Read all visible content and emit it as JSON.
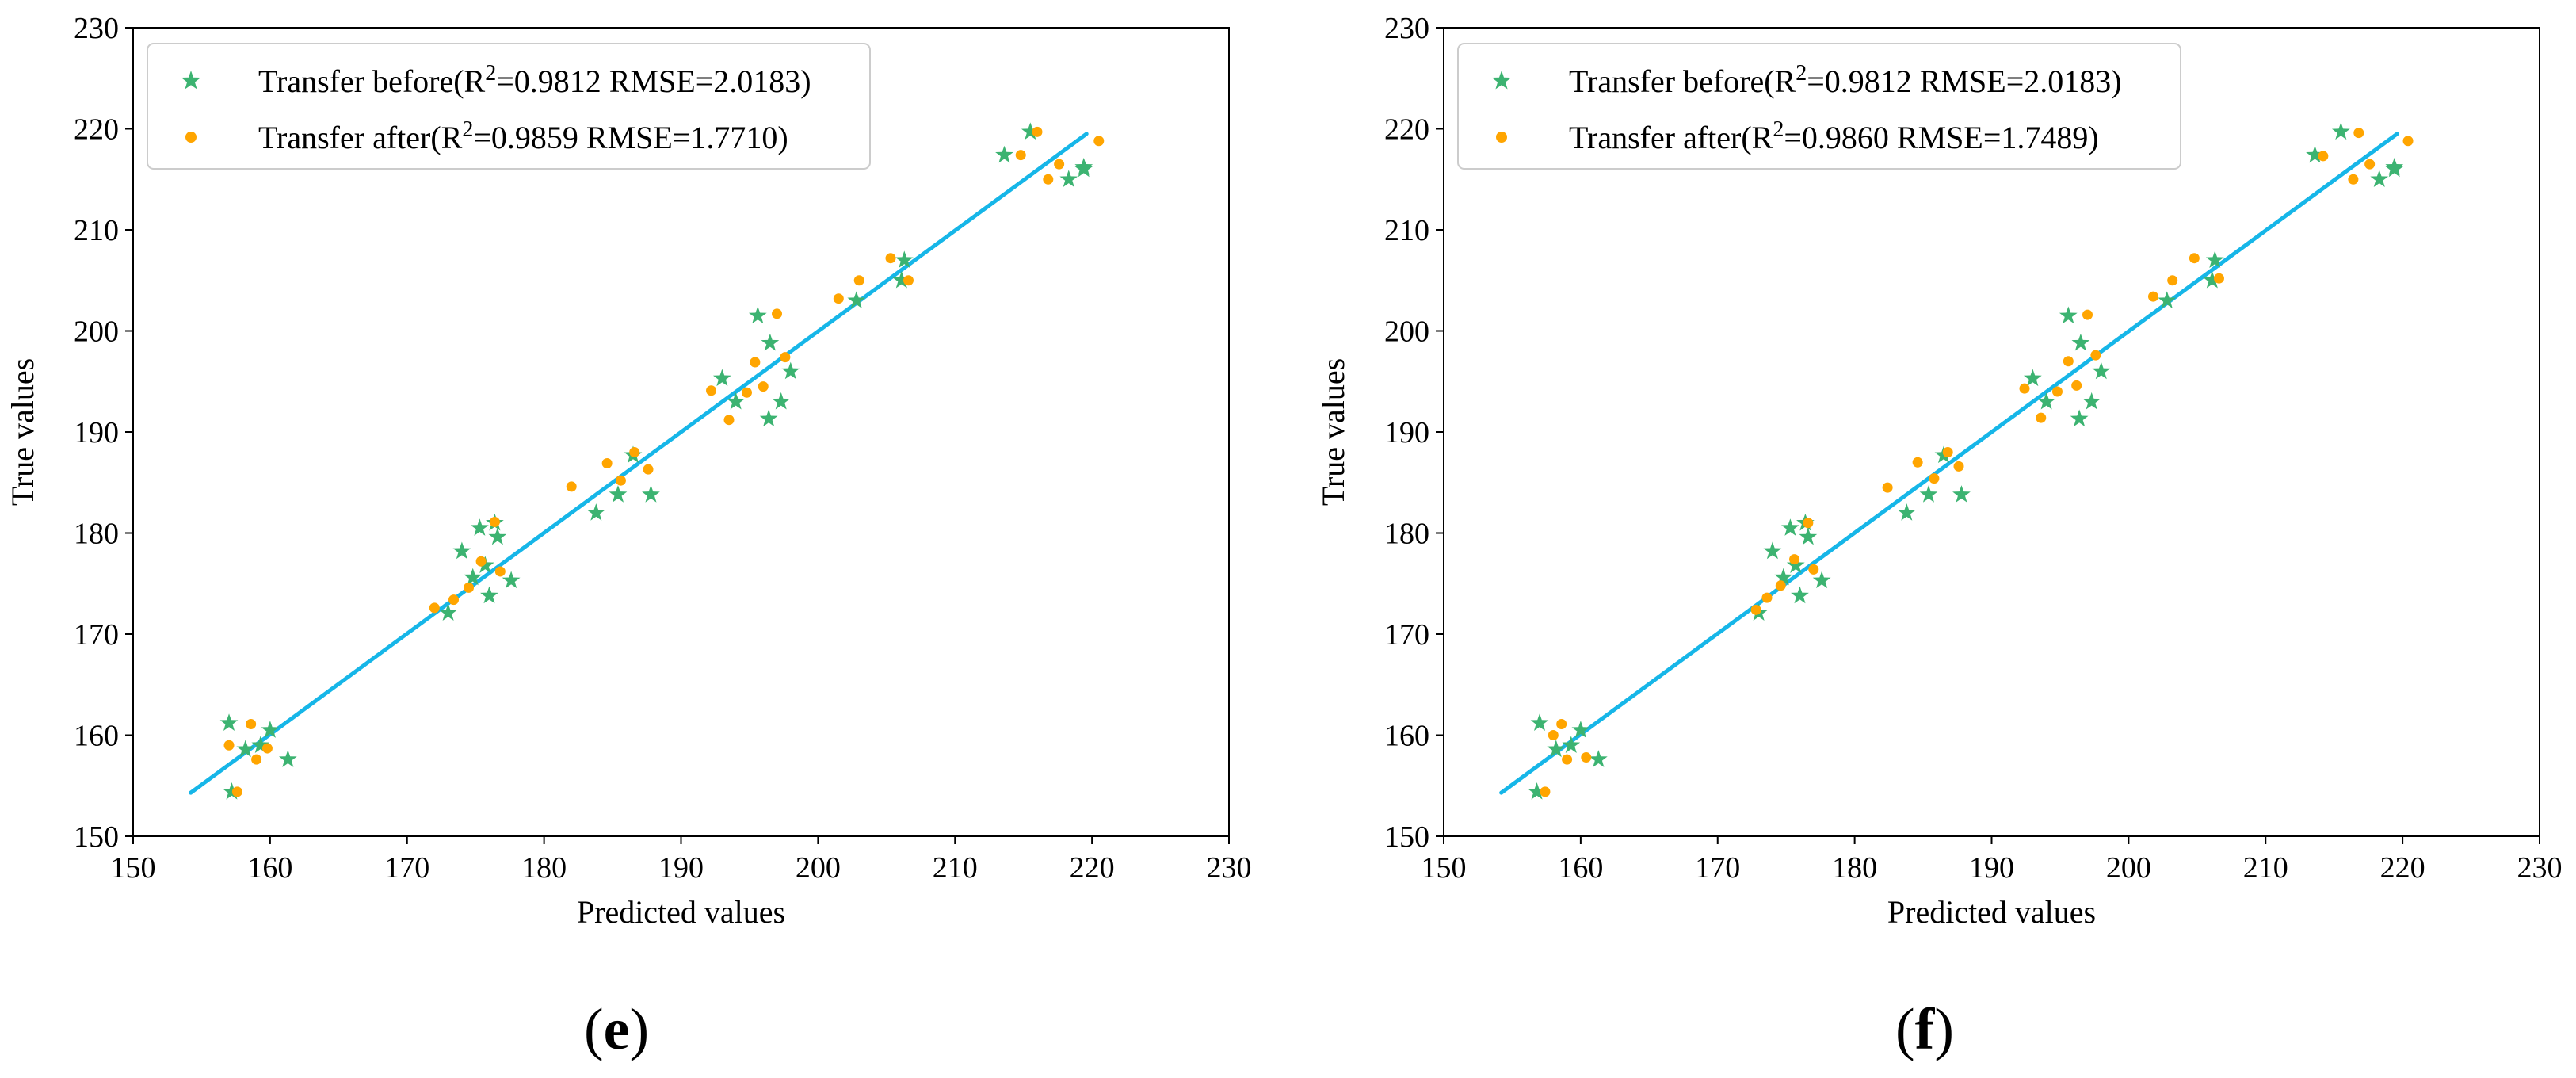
{
  "colors": {
    "before": "#3cb371",
    "after": "#ffa500",
    "fit": "#16b6e8"
  },
  "chart_data": [
    {
      "type": "scatter",
      "panel_label": "e",
      "title": "",
      "xlabel": "Predicted values",
      "ylabel": "True values",
      "xlim": [
        150,
        230
      ],
      "ylim": [
        150,
        230
      ],
      "xticks": [
        "150",
        "160",
        "170",
        "180",
        "190",
        "200",
        "210",
        "220",
        "230"
      ],
      "yticks": [
        "150",
        "160",
        "170",
        "180",
        "190",
        "200",
        "210",
        "220",
        "230"
      ],
      "grid": false,
      "legend_position": "top-left",
      "legend": [
        {
          "prefix": "Transfer before(R",
          "sup": "2",
          "suffix": "=0.9812 RMSE=2.0183)",
          "marker": "star"
        },
        {
          "prefix": "Transfer after(R",
          "sup": "2",
          "suffix": "=0.9859 RMSE=1.7710)",
          "marker": "dot"
        }
      ],
      "fit_line": {
        "x": [
          154.2,
          219.6
        ],
        "y": [
          154.3,
          219.5
        ]
      },
      "series": [
        {
          "name": "Transfer before",
          "marker": "star",
          "points": [
            [
              157.0,
              161.2
            ],
            [
              157.2,
              154.4
            ],
            [
              158.2,
              158.6
            ],
            [
              159.3,
              159.0
            ],
            [
              160.0,
              160.5
            ],
            [
              161.3,
              157.6
            ],
            [
              173.0,
              172.1
            ],
            [
              174.0,
              178.2
            ],
            [
              174.8,
              175.6
            ],
            [
              175.3,
              180.5
            ],
            [
              175.7,
              176.8
            ],
            [
              176.4,
              181.0
            ],
            [
              176.0,
              173.8
            ],
            [
              176.6,
              179.6
            ],
            [
              177.6,
              175.3
            ],
            [
              183.8,
              182.0
            ],
            [
              185.4,
              183.8
            ],
            [
              186.5,
              187.7
            ],
            [
              187.8,
              183.8
            ],
            [
              193.0,
              195.3
            ],
            [
              194.0,
              193.0
            ],
            [
              195.6,
              201.5
            ],
            [
              196.4,
              191.3
            ],
            [
              196.5,
              198.8
            ],
            [
              197.3,
              193.0
            ],
            [
              198.0,
              196.0
            ],
            [
              202.8,
              203.0
            ],
            [
              206.3,
              207.0
            ],
            [
              206.1,
              205.0
            ],
            [
              213.6,
              217.4
            ],
            [
              215.5,
              219.7
            ],
            [
              218.3,
              215.0
            ],
            [
              219.4,
              216.0
            ],
            [
              219.4,
              216.2
            ]
          ]
        },
        {
          "name": "Transfer after",
          "marker": "dot",
          "points": [
            [
              157.0,
              159.0
            ],
            [
              157.6,
              154.4
            ],
            [
              158.6,
              161.1
            ],
            [
              159.0,
              157.6
            ],
            [
              159.8,
              158.7
            ],
            [
              172.0,
              172.6
            ],
            [
              173.4,
              173.4
            ],
            [
              174.5,
              174.6
            ],
            [
              175.4,
              177.2
            ],
            [
              176.4,
              181.1
            ],
            [
              176.8,
              176.2
            ],
            [
              182.0,
              184.6
            ],
            [
              184.6,
              186.9
            ],
            [
              185.6,
              185.2
            ],
            [
              186.6,
              188.0
            ],
            [
              187.6,
              186.3
            ],
            [
              192.2,
              194.1
            ],
            [
              193.5,
              191.2
            ],
            [
              194.8,
              193.9
            ],
            [
              195.4,
              196.9
            ],
            [
              196.0,
              194.5
            ],
            [
              197.0,
              201.7
            ],
            [
              197.6,
              197.4
            ],
            [
              201.5,
              203.2
            ],
            [
              203.0,
              205.0
            ],
            [
              205.3,
              207.2
            ],
            [
              206.6,
              205.0
            ],
            [
              214.8,
              217.4
            ],
            [
              216.0,
              219.7
            ],
            [
              216.8,
              215.0
            ],
            [
              217.6,
              216.5
            ],
            [
              220.5,
              218.8
            ]
          ]
        }
      ]
    },
    {
      "type": "scatter",
      "panel_label": "f",
      "title": "",
      "xlabel": "Predicted values",
      "ylabel": "True values",
      "xlim": [
        150,
        230
      ],
      "ylim": [
        150,
        230
      ],
      "xticks": [
        "150",
        "160",
        "170",
        "180",
        "190",
        "200",
        "210",
        "220",
        "230"
      ],
      "yticks": [
        "150",
        "160",
        "170",
        "180",
        "190",
        "200",
        "210",
        "220",
        "230"
      ],
      "grid": false,
      "legend_position": "top-left",
      "legend": [
        {
          "prefix": "Transfer before(R",
          "sup": "2",
          "suffix": "=0.9812 RMSE=2.0183)",
          "marker": "star"
        },
        {
          "prefix": "Transfer after(R",
          "sup": "2",
          "suffix": "=0.9860 RMSE=1.7489)",
          "marker": "dot"
        }
      ],
      "fit_line": {
        "x": [
          154.2,
          219.6
        ],
        "y": [
          154.3,
          219.5
        ]
      },
      "series": [
        {
          "name": "Transfer before",
          "marker": "star",
          "points": [
            [
              157.0,
              161.2
            ],
            [
              156.8,
              154.4
            ],
            [
              158.2,
              158.6
            ],
            [
              159.3,
              159.0
            ],
            [
              160.0,
              160.5
            ],
            [
              161.3,
              157.6
            ],
            [
              173.0,
              172.1
            ],
            [
              174.0,
              178.2
            ],
            [
              174.8,
              175.6
            ],
            [
              175.3,
              180.5
            ],
            [
              175.7,
              176.8
            ],
            [
              176.4,
              181.0
            ],
            [
              176.0,
              173.8
            ],
            [
              176.6,
              179.6
            ],
            [
              177.6,
              175.3
            ],
            [
              183.8,
              182.0
            ],
            [
              185.4,
              183.8
            ],
            [
              186.5,
              187.7
            ],
            [
              187.8,
              183.8
            ],
            [
              193.0,
              195.3
            ],
            [
              194.0,
              193.0
            ],
            [
              195.6,
              201.5
            ],
            [
              196.4,
              191.3
            ],
            [
              196.5,
              198.8
            ],
            [
              197.3,
              193.0
            ],
            [
              198.0,
              196.0
            ],
            [
              202.8,
              203.0
            ],
            [
              206.3,
              207.0
            ],
            [
              206.1,
              205.0
            ],
            [
              213.6,
              217.4
            ],
            [
              215.5,
              219.7
            ],
            [
              218.3,
              215.0
            ],
            [
              219.4,
              216.0
            ],
            [
              219.4,
              216.2
            ]
          ]
        },
        {
          "name": "Transfer after",
          "marker": "dot",
          "points": [
            [
              157.4,
              154.4
            ],
            [
              158.0,
              160.0
            ],
            [
              158.6,
              161.1
            ],
            [
              159.0,
              157.6
            ],
            [
              160.4,
              157.8
            ],
            [
              172.8,
              172.4
            ],
            [
              173.6,
              173.6
            ],
            [
              174.6,
              174.8
            ],
            [
              175.6,
              177.4
            ],
            [
              176.6,
              181.0
            ],
            [
              177.0,
              176.4
            ],
            [
              182.4,
              184.5
            ],
            [
              184.6,
              187.0
            ],
            [
              185.8,
              185.4
            ],
            [
              186.8,
              188.0
            ],
            [
              187.6,
              186.6
            ],
            [
              192.4,
              194.3
            ],
            [
              193.6,
              191.4
            ],
            [
              194.8,
              194.0
            ],
            [
              195.6,
              197.0
            ],
            [
              196.2,
              194.6
            ],
            [
              197.0,
              201.6
            ],
            [
              197.6,
              197.6
            ],
            [
              201.8,
              203.4
            ],
            [
              203.2,
              205.0
            ],
            [
              204.8,
              207.2
            ],
            [
              206.6,
              205.2
            ],
            [
              214.2,
              217.3
            ],
            [
              216.4,
              215.0
            ],
            [
              216.8,
              219.6
            ],
            [
              217.6,
              216.5
            ],
            [
              220.4,
              218.8
            ]
          ]
        }
      ]
    }
  ]
}
